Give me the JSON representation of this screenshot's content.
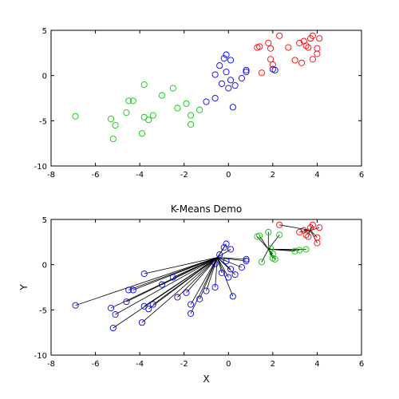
{
  "chart_data": [
    {
      "type": "scatter",
      "title": "",
      "xlabel": "",
      "ylabel": "",
      "xlim": [
        -8,
        6
      ],
      "ylim": [
        -10,
        5
      ],
      "xticks": [
        "-8",
        "-6",
        "-4",
        "-2",
        "0",
        "2",
        "4",
        "6"
      ],
      "yticks": [
        "5",
        "0",
        "-5",
        "-10"
      ],
      "grid": false,
      "series": [
        {
          "color": "#00cc00",
          "points": [
            [
              -6.9,
              -4.5
            ],
            [
              -5.3,
              -4.8
            ],
            [
              -5.2,
              -7.0
            ],
            [
              -5.1,
              -5.5
            ],
            [
              -4.6,
              -4.1
            ],
            [
              -4.5,
              -2.8
            ],
            [
              -4.3,
              -2.8
            ],
            [
              -3.9,
              -6.4
            ],
            [
              -3.8,
              -4.6
            ],
            [
              -3.8,
              -1.0
            ],
            [
              -3.6,
              -4.9
            ],
            [
              -3.4,
              -4.4
            ],
            [
              -3.0,
              -2.2
            ],
            [
              -2.5,
              -1.4
            ],
            [
              -2.3,
              -3.6
            ],
            [
              -1.9,
              -3.1
            ],
            [
              -1.7,
              -4.4
            ],
            [
              -1.7,
              -5.4
            ],
            [
              -1.3,
              -3.8
            ]
          ]
        },
        {
          "color": "#0000ff",
          "points": [
            [
              -1.0,
              -2.9
            ],
            [
              -0.6,
              -2.5
            ],
            [
              -0.6,
              0.1
            ],
            [
              -0.4,
              1.1
            ],
            [
              -0.3,
              -0.9
            ],
            [
              -0.2,
              1.9
            ],
            [
              -0.1,
              2.3
            ],
            [
              -0.1,
              0.4
            ],
            [
              0.0,
              -1.4
            ],
            [
              0.1,
              -0.5
            ],
            [
              0.1,
              1.7
            ],
            [
              0.2,
              -3.5
            ],
            [
              0.3,
              -1.1
            ],
            [
              0.6,
              -0.3
            ],
            [
              0.8,
              0.4
            ],
            [
              0.8,
              0.6
            ],
            [
              2.0,
              0.7
            ],
            [
              2.1,
              0.6
            ]
          ]
        },
        {
          "color": "#ff0000",
          "points": [
            [
              1.3,
              3.1
            ],
            [
              1.4,
              3.2
            ],
            [
              1.5,
              0.3
            ],
            [
              1.8,
              3.6
            ],
            [
              1.9,
              1.8
            ],
            [
              1.9,
              3.0
            ],
            [
              2.0,
              1.2
            ],
            [
              2.3,
              4.4
            ],
            [
              2.7,
              3.1
            ],
            [
              3.0,
              1.7
            ],
            [
              3.2,
              3.6
            ],
            [
              3.3,
              1.4
            ],
            [
              3.4,
              3.8
            ],
            [
              3.5,
              3.3
            ],
            [
              3.6,
              3.1
            ],
            [
              3.7,
              4.1
            ],
            [
              3.8,
              4.4
            ],
            [
              3.8,
              1.8
            ],
            [
              4.0,
              2.4
            ],
            [
              4.0,
              3.0
            ],
            [
              4.1,
              4.1
            ]
          ]
        }
      ]
    },
    {
      "type": "scatter",
      "title": "K-Means Demo",
      "xlabel": "X",
      "ylabel": "Y",
      "xlim": [
        -8,
        6
      ],
      "ylim": [
        -10,
        5
      ],
      "xticks": [
        "-8",
        "-6",
        "-4",
        "-2",
        "0",
        "2",
        "4",
        "6"
      ],
      "yticks": [
        "5",
        "0",
        "-5",
        "-10"
      ],
      "grid": false,
      "centroids": [
        {
          "cluster": "blue",
          "x": -0.5,
          "y": 0.8
        },
        {
          "cluster": "green",
          "x": 1.8,
          "y": 1.7
        },
        {
          "cluster": "red",
          "x": 3.7,
          "y": 3.8
        }
      ],
      "series": [
        {
          "color": "#0000ff",
          "points": [
            [
              -6.9,
              -4.5
            ],
            [
              -5.3,
              -4.8
            ],
            [
              -5.2,
              -7.0
            ],
            [
              -5.1,
              -5.5
            ],
            [
              -4.6,
              -4.1
            ],
            [
              -4.5,
              -2.8
            ],
            [
              -4.3,
              -2.8
            ],
            [
              -3.9,
              -6.4
            ],
            [
              -3.8,
              -4.6
            ],
            [
              -3.8,
              -1.0
            ],
            [
              -3.6,
              -4.9
            ],
            [
              -3.4,
              -4.4
            ],
            [
              -3.0,
              -2.2
            ],
            [
              -2.5,
              -1.4
            ],
            [
              -2.3,
              -3.6
            ],
            [
              -1.9,
              -3.1
            ],
            [
              -1.7,
              -4.4
            ],
            [
              -1.7,
              -5.4
            ],
            [
              -1.3,
              -3.8
            ],
            [
              -1.0,
              -2.9
            ],
            [
              -0.6,
              -2.5
            ],
            [
              -0.6,
              0.1
            ],
            [
              -0.4,
              1.1
            ],
            [
              -0.3,
              -0.9
            ],
            [
              -0.2,
              1.9
            ],
            [
              -0.1,
              2.3
            ],
            [
              -0.1,
              0.4
            ],
            [
              0.0,
              -1.4
            ],
            [
              0.1,
              -0.5
            ],
            [
              0.1,
              1.7
            ],
            [
              0.2,
              -3.5
            ],
            [
              0.3,
              -1.1
            ],
            [
              0.6,
              -0.3
            ],
            [
              0.8,
              0.4
            ],
            [
              0.8,
              0.6
            ]
          ]
        },
        {
          "color": "#00cc00",
          "points": [
            [
              1.3,
              3.1
            ],
            [
              1.4,
              3.2
            ],
            [
              1.5,
              0.3
            ],
            [
              1.8,
              3.6
            ],
            [
              2.0,
              0.7
            ],
            [
              2.1,
              0.6
            ],
            [
              2.0,
              1.2
            ],
            [
              1.9,
              1.8
            ],
            [
              2.3,
              3.3
            ],
            [
              3.2,
              1.6
            ],
            [
              3.5,
              1.7
            ],
            [
              3.0,
              1.5
            ]
          ]
        },
        {
          "color": "#ff0000",
          "points": [
            [
              2.3,
              4.4
            ],
            [
              3.2,
              3.6
            ],
            [
              3.4,
              3.8
            ],
            [
              3.5,
              3.3
            ],
            [
              3.6,
              3.1
            ],
            [
              3.7,
              4.1
            ],
            [
              3.8,
              4.4
            ],
            [
              4.0,
              2.4
            ],
            [
              4.0,
              3.0
            ],
            [
              4.1,
              4.1
            ]
          ]
        }
      ]
    }
  ]
}
